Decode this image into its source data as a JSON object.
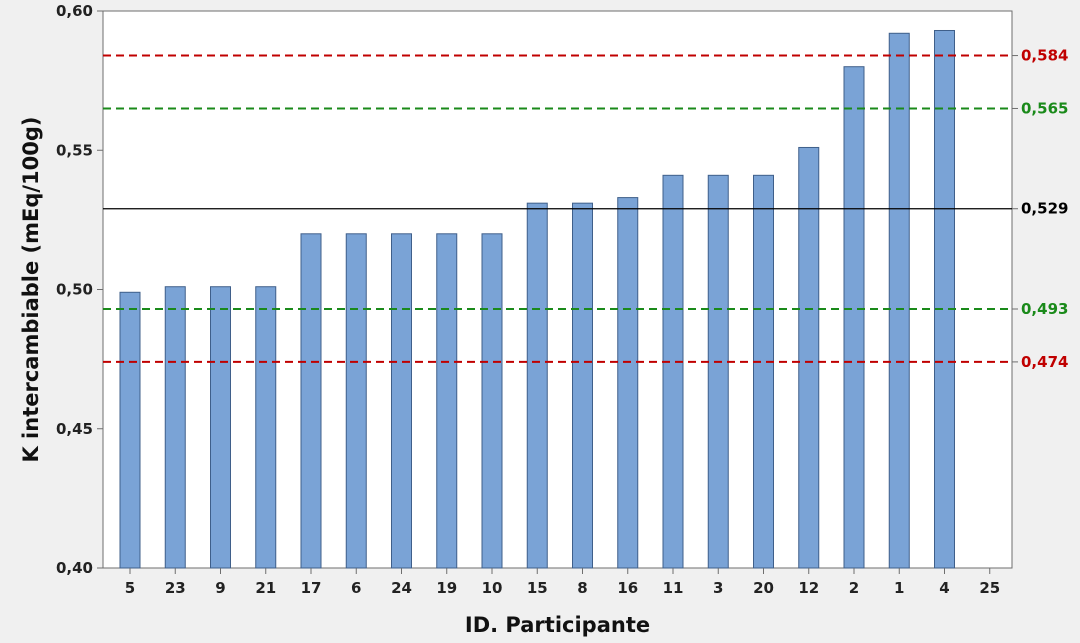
{
  "chart_data": {
    "type": "bar",
    "title": "",
    "xlabel": "ID. Participante",
    "ylabel": "K intercambiable (mEq/100g)",
    "categories": [
      "5",
      "23",
      "9",
      "21",
      "17",
      "6",
      "24",
      "19",
      "10",
      "15",
      "8",
      "16",
      "11",
      "3",
      "20",
      "12",
      "2",
      "1",
      "4",
      "25"
    ],
    "values": [
      0.499,
      0.501,
      0.501,
      0.501,
      0.52,
      0.52,
      0.52,
      0.52,
      0.52,
      0.531,
      0.531,
      0.533,
      0.541,
      0.541,
      0.541,
      0.551,
      0.58,
      0.592,
      0.593,
      null
    ],
    "ylim": [
      0.4,
      0.6
    ],
    "yticks": [
      "0,40",
      "0,45",
      "0,50",
      "0,55",
      "0,60"
    ],
    "ytick_values": [
      0.4,
      0.45,
      0.5,
      0.55,
      0.6
    ],
    "grid": false,
    "bar_color": "#7aa3d6",
    "reference_lines": [
      {
        "value": 0.584,
        "label": "0,584",
        "color": "#c00000",
        "style": "dashed"
      },
      {
        "value": 0.565,
        "label": "0,565",
        "color": "#1a8a1a",
        "style": "dashed"
      },
      {
        "value": 0.529,
        "label": "0,529",
        "color": "#000000",
        "style": "solid"
      },
      {
        "value": 0.493,
        "label": "0,493",
        "color": "#1a8a1a",
        "style": "dashed"
      },
      {
        "value": 0.474,
        "label": "0,474",
        "color": "#c00000",
        "style": "dashed"
      }
    ]
  }
}
